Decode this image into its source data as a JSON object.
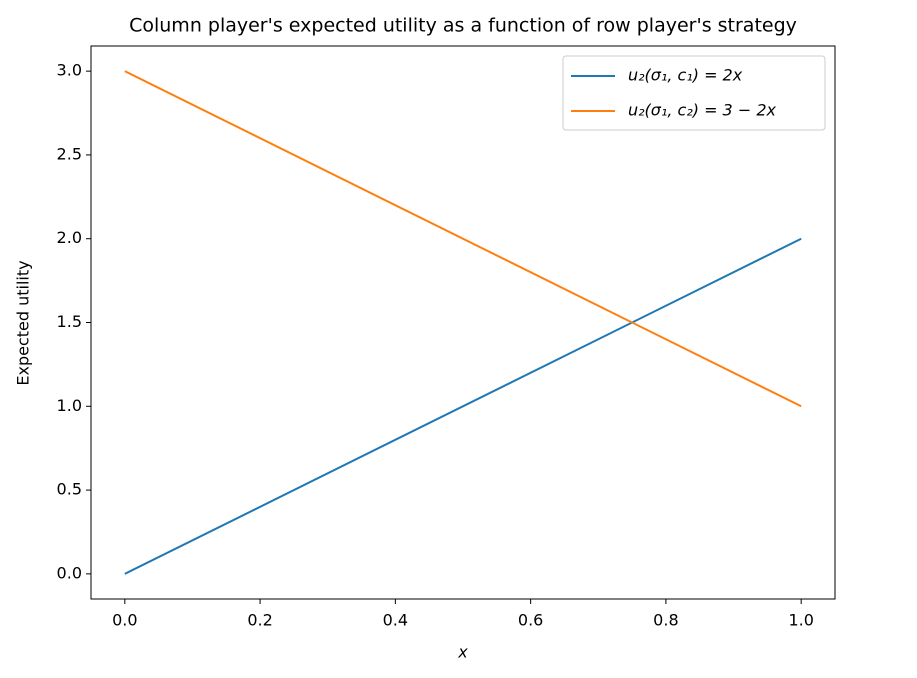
{
  "chart_data": {
    "type": "line",
    "title": "Column player's expected utility as a function of row player's strategy",
    "xlabel": "x",
    "ylabel": "Expected utility",
    "x": [
      0,
      1
    ],
    "series": [
      {
        "name": "u₂(σ₁, c₁) = 2x",
        "color": "#1f77b4",
        "values": [
          0,
          2
        ]
      },
      {
        "name": "u₂(σ₁, c₂) = 3 − 2x",
        "color": "#ff7f0e",
        "values": [
          3,
          1
        ]
      }
    ],
    "xlim": [
      -0.05,
      1.05
    ],
    "xticks": [
      {
        "value": 0,
        "label": "0.0"
      },
      0.2,
      0.4,
      0.6,
      0.8,
      {
        "value": 1,
        "label": "1.0"
      }
    ],
    "ylim": [
      -0.15,
      3.15
    ],
    "yticks": [
      {
        "value": 0,
        "label": "0.0"
      },
      0.5,
      {
        "value": 1,
        "label": "1.0"
      },
      1.5,
      {
        "value": 2,
        "label": "2.0"
      },
      2.5,
      {
        "value": 3,
        "label": "3.0"
      }
    ],
    "grid": false,
    "legend": "upper right"
  }
}
